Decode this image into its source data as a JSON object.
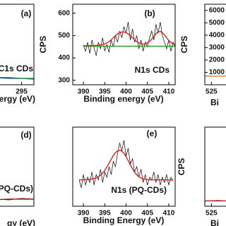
{
  "chart_data": [
    {
      "type": "line",
      "label": "(a)",
      "annotation": "C1s CDs",
      "xlabel": "ergy (eV)",
      "x": [
        281,
        284,
        287,
        290,
        293,
        295,
        297
      ],
      "xlim": [
        280,
        297
      ],
      "ylim": [
        0,
        100
      ],
      "xticks": [
        295
      ],
      "series": [
        {
          "color": "#1f3fb0",
          "values": [
            12,
            10,
            9,
            9,
            8,
            8,
            7
          ]
        },
        {
          "color": "#2ca02c",
          "values": [
            10,
            9,
            9,
            9,
            9,
            8,
            8
          ]
        }
      ]
    },
    {
      "type": "line",
      "label": "(b)",
      "annotation": "N1s CDs",
      "xlabel": "Binding energy (eV)",
      "ylabel": "CPS",
      "x": [
        390,
        390.5,
        391,
        391.5,
        392,
        392.5,
        393,
        393.5,
        394,
        394.5,
        395,
        395.5,
        396,
        396.5,
        397,
        397.5,
        398,
        398.5,
        399,
        399.5,
        400,
        400.5,
        401,
        401.5,
        402,
        402.5,
        403,
        403.5,
        404,
        404.5,
        405,
        405.5,
        406,
        406.5,
        407,
        407.5,
        408,
        408.5,
        409,
        409.5,
        410,
        410.5,
        411,
        411.5,
        412
      ],
      "xlim": [
        387.5,
        411.5
      ],
      "ylim": [
        280,
        640
      ],
      "xticks": [
        390,
        395,
        400,
        405,
        410
      ],
      "yticks": [
        300,
        400,
        500,
        600
      ],
      "series": [
        {
          "color": "#000000",
          "values": [
            455,
            430,
            470,
            420,
            480,
            445,
            410,
            470,
            440,
            490,
            430,
            460,
            425,
            480,
            450,
            500,
            470,
            520,
            490,
            540,
            510,
            560,
            480,
            530,
            470,
            500,
            440,
            480,
            430,
            470,
            450,
            490,
            520,
            480,
            550,
            510,
            560,
            500,
            470,
            440,
            480,
            430,
            470,
            450,
            460
          ]
        },
        {
          "color": "#2ca02c",
          "values": [
            452,
            452,
            452,
            452,
            452,
            452,
            452,
            452,
            452,
            452,
            452,
            452,
            452,
            452,
            452,
            452,
            452,
            452,
            452,
            452,
            452,
            452,
            452,
            452,
            452,
            452,
            452,
            452,
            452,
            452,
            452,
            452,
            452,
            452,
            452,
            452,
            452,
            452,
            452,
            452,
            452,
            452,
            452,
            452,
            452
          ]
        },
        {
          "color": "#e0201c",
          "values": [
            455,
            455,
            455,
            455,
            455,
            455,
            456,
            457,
            458,
            460,
            463,
            467,
            473,
            481,
            490,
            499,
            507,
            513,
            516,
            516,
            513,
            507,
            499,
            490,
            481,
            473,
            467,
            463,
            461,
            463,
            467,
            474,
            484,
            496,
            508,
            516,
            518,
            513,
            503,
            490,
            478,
            469,
            463,
            459,
            457
          ]
        }
      ]
    },
    {
      "type": "line",
      "ylabel": "CPS",
      "xlabel": "Bi",
      "x": [
        524,
        526,
        528,
        530,
        532
      ],
      "xlim": [
        524,
        540
      ],
      "ylim": [
        0,
        6500
      ],
      "xticks": [
        525
      ],
      "yticks": [
        1000,
        2000,
        3000,
        4000,
        5000,
        6000
      ],
      "series": [
        {
          "color": "#e07b20",
          "values": [
            700,
            690,
            720,
            680,
            700
          ]
        }
      ]
    },
    {
      "type": "line",
      "label": "(d)",
      "annotation": "PQ-CDs)",
      "xlabel": "gy (eV)",
      "x": [
        281,
        284,
        287,
        290,
        293,
        295,
        297
      ],
      "xlim": [
        280,
        297
      ],
      "ylim": [
        0,
        100
      ],
      "series": [
        {
          "color": "#000000",
          "values": [
            8,
            10,
            7,
            9,
            8,
            10,
            9
          ]
        },
        {
          "color": "#a01010",
          "values": [
            8,
            8,
            8,
            8,
            9,
            9,
            9
          ]
        }
      ]
    },
    {
      "type": "line",
      "label": "(e)",
      "annotation": "N1s (PQ-CDs)",
      "xlabel": "Binding Energy (eV)",
      "x": [
        389,
        389.5,
        390,
        390.5,
        391,
        391.5,
        392,
        392.5,
        393,
        393.5,
        394,
        394.5,
        395,
        395.5,
        396,
        396.5,
        397,
        397.5,
        398,
        398.5,
        399,
        399.5,
        400,
        400.5,
        401,
        401.5,
        402,
        402.5,
        403,
        403.5,
        404,
        404.5,
        405,
        405.5,
        406,
        406.5,
        407,
        407.5,
        408,
        408.5,
        409,
        409.5,
        410,
        410.5,
        411
      ],
      "xlim": [
        387.5,
        411.5
      ],
      "ylim": [
        350,
        650
      ],
      "xticks": [
        390,
        395,
        400,
        405,
        410
      ],
      "series": [
        {
          "color": "#000000",
          "values": [
            450,
            420,
            470,
            430,
            460,
            440,
            480,
            430,
            470,
            450,
            490,
            440,
            480,
            460,
            500,
            470,
            520,
            500,
            550,
            590,
            560,
            600,
            540,
            570,
            510,
            530,
            480,
            500,
            460,
            490,
            440,
            470,
            430,
            460,
            450,
            480,
            440,
            470,
            430,
            460,
            440,
            470,
            430,
            460,
            445
          ]
        },
        {
          "color": "#e0201c",
          "values": [
            450,
            450,
            450,
            451,
            451,
            452,
            453,
            455,
            458,
            462,
            468,
            476,
            486,
            499,
            513,
            528,
            542,
            553,
            560,
            562,
            559,
            551,
            538,
            523,
            507,
            492,
            479,
            469,
            462,
            457,
            454,
            452,
            451,
            450,
            450,
            450,
            450,
            450,
            450,
            450,
            450,
            450,
            450,
            450,
            450
          ]
        }
      ]
    },
    {
      "type": "line",
      "ylabel": "CPS",
      "xlabel": "Bi",
      "x": [
        524,
        526,
        528,
        530,
        532
      ],
      "xlim": [
        524,
        540
      ],
      "ylim": [
        0,
        6500
      ],
      "xticks": [
        525
      ],
      "series": [
        {
          "color": "#000000",
          "values": [
            420,
            480,
            400,
            460,
            430
          ]
        },
        {
          "color": "#c01818",
          "values": [
            440,
            440,
            440,
            440,
            440
          ]
        }
      ]
    }
  ]
}
